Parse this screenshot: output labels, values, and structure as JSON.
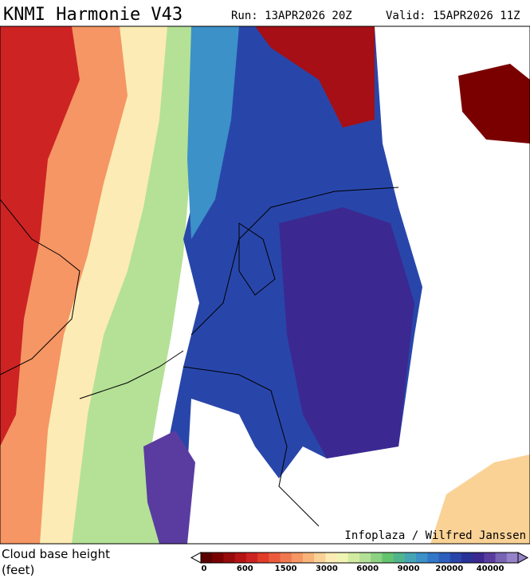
{
  "header": {
    "title": "KNMI Harmonie V43",
    "run": "Run: 13APR2026 20Z",
    "valid": "Valid: 15APR2026 11Z"
  },
  "map": {
    "credit": "Infoplaza / Wilfred Janssen"
  },
  "legend": {
    "title": "Cloud base height",
    "unit": "(feet)",
    "labels": [
      "0",
      "600",
      "1500",
      "3000",
      "6000",
      "9000",
      "20000",
      "40000"
    ],
    "colors": [
      "#5a0000",
      "#7a0000",
      "#960a0a",
      "#b41414",
      "#cd2323",
      "#e03c28",
      "#eb5a3c",
      "#f07850",
      "#f59664",
      "#f8b478",
      "#fad296",
      "#fcebb4",
      "#f0f5b4",
      "#d2eba0",
      "#b4e196",
      "#8cd282",
      "#64c36e",
      "#50b48c",
      "#46a5b4",
      "#3c91c8",
      "#3278c8",
      "#2d5fbe",
      "#2846aa",
      "#283296",
      "#3c2891",
      "#5a3ca0",
      "#7864b4",
      "#9682c8"
    ]
  }
}
